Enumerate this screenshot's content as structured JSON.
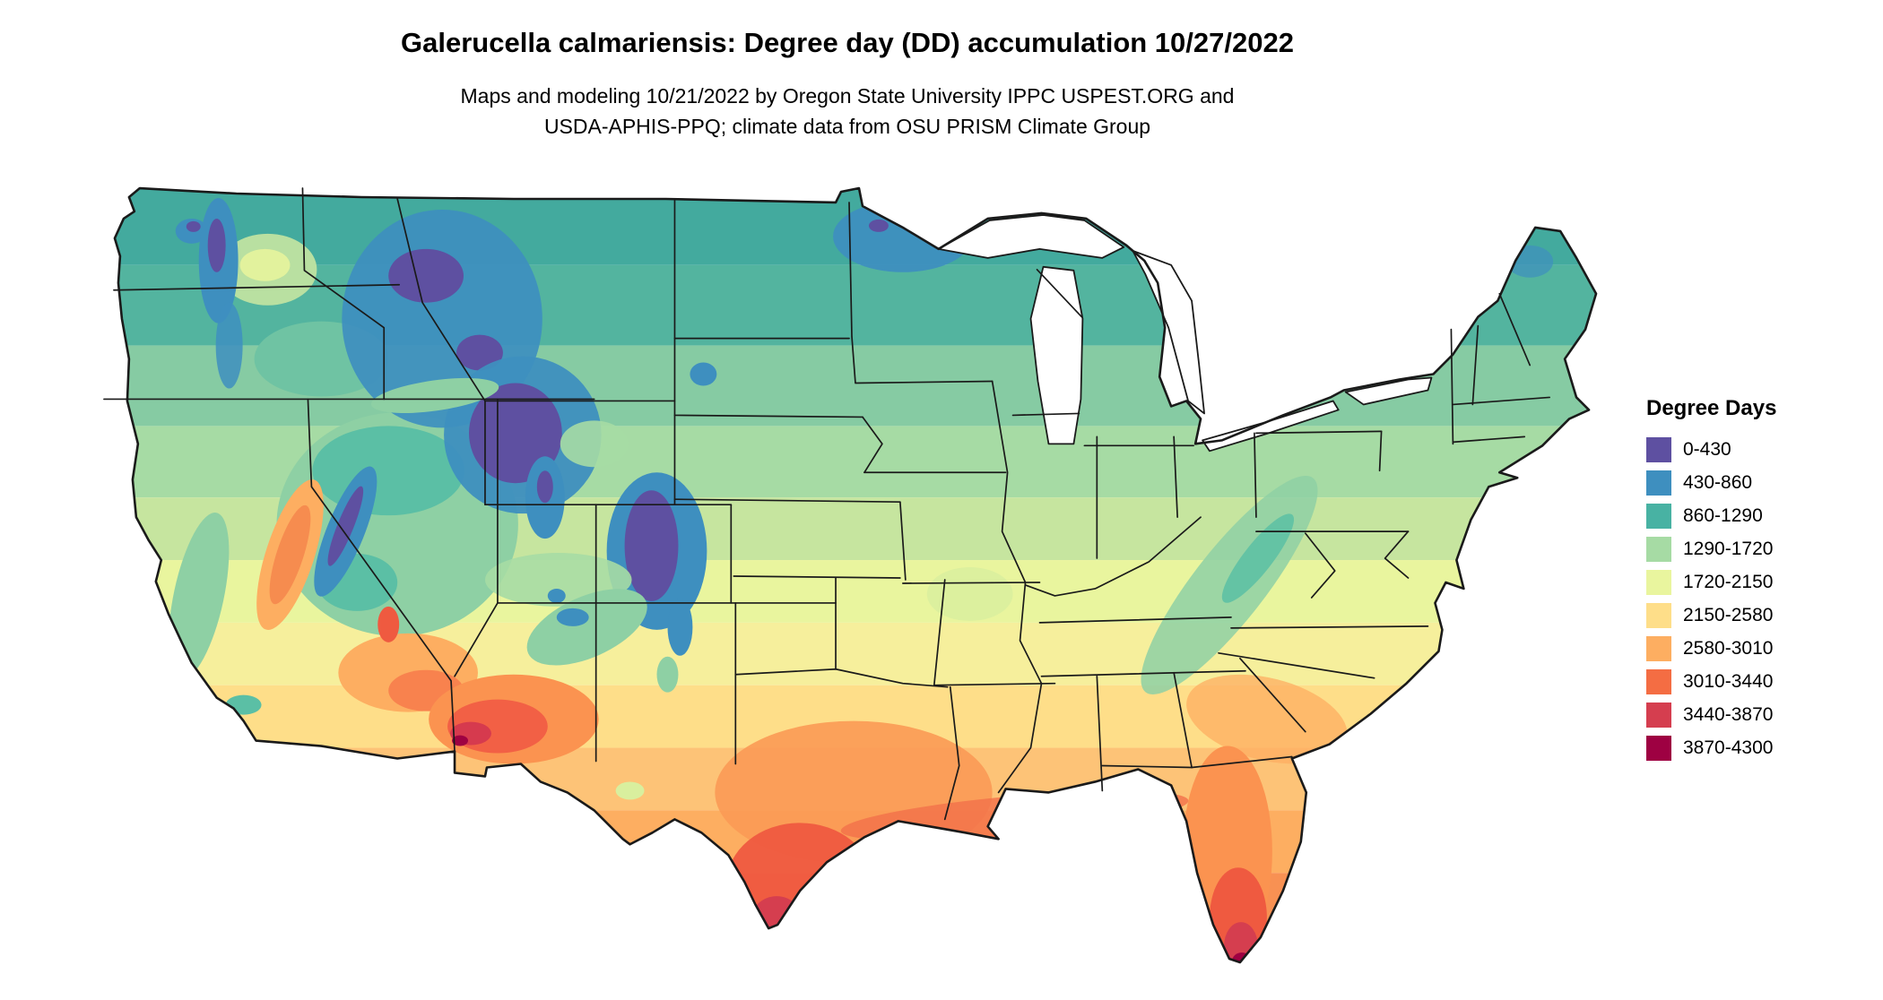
{
  "title": "Galerucella calmariensis: Degree day (DD) accumulation 10/27/2022",
  "subtitle": {
    "line1": "Maps and modeling 10/21/2022 by Oregon State University IPPC USPEST.ORG and",
    "line2": "USDA-APHIS-PPQ; climate data from OSU PRISM Climate Group"
  },
  "legend": {
    "title": "Degree Days",
    "items": [
      {
        "label": "0-430",
        "color": "#5e50a1"
      },
      {
        "label": "430-860",
        "color": "#3e8fbf"
      },
      {
        "label": "860-1290",
        "color": "#48b2a3"
      },
      {
        "label": "1290-1720",
        "color": "#a6dba4"
      },
      {
        "label": "1720-2150",
        "color": "#e9f59e"
      },
      {
        "label": "2150-2580",
        "color": "#fede89"
      },
      {
        "label": "2580-3010",
        "color": "#fdae61"
      },
      {
        "label": "3010-3440",
        "color": "#f46d43"
      },
      {
        "label": "3440-3870",
        "color": "#d53e4f"
      },
      {
        "label": "3870-4300",
        "color": "#9e0142"
      }
    ]
  },
  "chart_data": {
    "type": "heatmap",
    "title": "Galerucella calmariensis: Degree day (DD) accumulation 10/27/2022",
    "legend_title": "Degree Days",
    "unit": "accumulated degree days",
    "bins": [
      {
        "range": "0-430",
        "color": "#5e50a1"
      },
      {
        "range": "430-860",
        "color": "#3e8fbf"
      },
      {
        "range": "860-1290",
        "color": "#48b2a3"
      },
      {
        "range": "1290-1720",
        "color": "#a6dba4"
      },
      {
        "range": "1720-2150",
        "color": "#e9f59e"
      },
      {
        "range": "2150-2580",
        "color": "#fede89"
      },
      {
        "range": "2580-3010",
        "color": "#fdae61"
      },
      {
        "range": "3010-3440",
        "color": "#f46d43"
      },
      {
        "range": "3440-3870",
        "color": "#d53e4f"
      },
      {
        "range": "3870-4300",
        "color": "#9e0142"
      }
    ],
    "notes": "Raster choropleth of the contiguous United States; lowest accumulations (purple/blue) over the Cascades, Sierra Nevada, northern and central Rockies and northern Minnesota; mid accumulations (teal/green/yellow) across the northern tier, Midwest and Appalachians; highest accumulations (orange/red/dark red) across the desert Southwest, southern Texas, the Gulf Coast and peninsular Florida."
  }
}
